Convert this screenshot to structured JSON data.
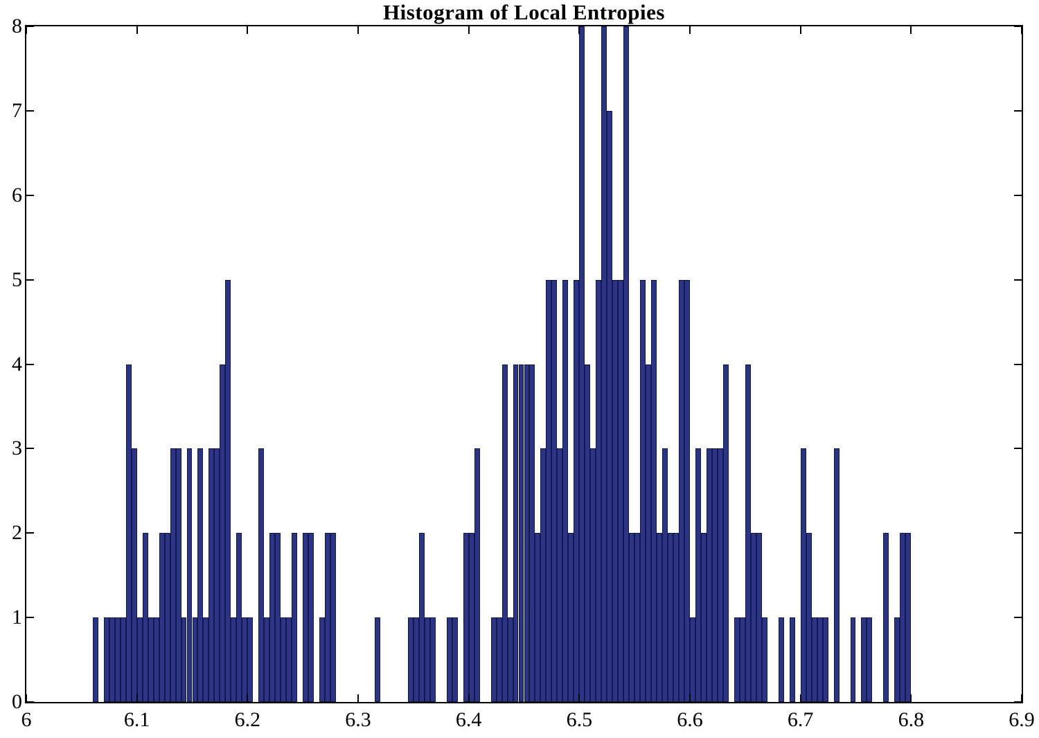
{
  "title": "Histogram of Local Entropies",
  "chart_data": {
    "type": "bar",
    "title": "Histogram of Local Entropies",
    "xlabel": "",
    "ylabel": "",
    "xlim": [
      6,
      6.9
    ],
    "ylim": [
      0,
      8
    ],
    "xtick_values": [
      6,
      6.1,
      6.2,
      6.3,
      6.4,
      6.5,
      6.6,
      6.7,
      6.8,
      6.9
    ],
    "xtick_labels": [
      "6",
      "6.1",
      "6.2",
      "6.3",
      "6.4",
      "6.5",
      "6.6",
      "6.7",
      "6.8",
      "6.9"
    ],
    "ytick_values": [
      0,
      1,
      2,
      3,
      4,
      5,
      6,
      7,
      8
    ],
    "ytick_labels": [
      "0",
      "1",
      "2",
      "3",
      "4",
      "5",
      "6",
      "7",
      "8"
    ],
    "grid": false,
    "legend": null,
    "bin_width": 0.005,
    "bar_color": "#2B3488",
    "bar_edge_color": "#14183F",
    "bins": [
      [
        6.06,
        1
      ],
      [
        6.07,
        1
      ],
      [
        6.075,
        1
      ],
      [
        6.08,
        1
      ],
      [
        6.085,
        1
      ],
      [
        6.09,
        4
      ],
      [
        6.095,
        3
      ],
      [
        6.1,
        1
      ],
      [
        6.105,
        2
      ],
      [
        6.11,
        1
      ],
      [
        6.115,
        1
      ],
      [
        6.12,
        2
      ],
      [
        6.125,
        2
      ],
      [
        6.13,
        3
      ],
      [
        6.135,
        3
      ],
      [
        6.14,
        1
      ],
      [
        6.145,
        3
      ],
      [
        6.15,
        1
      ],
      [
        6.155,
        3
      ],
      [
        6.16,
        1
      ],
      [
        6.165,
        3
      ],
      [
        6.17,
        3
      ],
      [
        6.175,
        4
      ],
      [
        6.18,
        5
      ],
      [
        6.185,
        1
      ],
      [
        6.19,
        2
      ],
      [
        6.195,
        1
      ],
      [
        6.2,
        1
      ],
      [
        6.21,
        3
      ],
      [
        6.215,
        1
      ],
      [
        6.22,
        2
      ],
      [
        6.225,
        2
      ],
      [
        6.23,
        1
      ],
      [
        6.235,
        1
      ],
      [
        6.24,
        2
      ],
      [
        6.25,
        2
      ],
      [
        6.255,
        2
      ],
      [
        6.265,
        1
      ],
      [
        6.27,
        2
      ],
      [
        6.275,
        2
      ],
      [
        6.315,
        1
      ],
      [
        6.345,
        1
      ],
      [
        6.35,
        1
      ],
      [
        6.355,
        2
      ],
      [
        6.36,
        1
      ],
      [
        6.365,
        1
      ],
      [
        6.38,
        1
      ],
      [
        6.385,
        1
      ],
      [
        6.395,
        2
      ],
      [
        6.4,
        2
      ],
      [
        6.405,
        3
      ],
      [
        6.42,
        1
      ],
      [
        6.425,
        1
      ],
      [
        6.43,
        4
      ],
      [
        6.435,
        1
      ],
      [
        6.44,
        4
      ],
      [
        6.445,
        4
      ],
      [
        6.45,
        4
      ],
      [
        6.455,
        4
      ],
      [
        6.46,
        2
      ],
      [
        6.465,
        3
      ],
      [
        6.47,
        5
      ],
      [
        6.475,
        5
      ],
      [
        6.48,
        3
      ],
      [
        6.485,
        5
      ],
      [
        6.49,
        2
      ],
      [
        6.495,
        5
      ],
      [
        6.5,
        8
      ],
      [
        6.505,
        4
      ],
      [
        6.51,
        3
      ],
      [
        6.515,
        5
      ],
      [
        6.52,
        8
      ],
      [
        6.525,
        7
      ],
      [
        6.53,
        5
      ],
      [
        6.535,
        5
      ],
      [
        6.54,
        8
      ],
      [
        6.545,
        2
      ],
      [
        6.55,
        2
      ],
      [
        6.555,
        5
      ],
      [
        6.56,
        4
      ],
      [
        6.565,
        5
      ],
      [
        6.57,
        2
      ],
      [
        6.575,
        3
      ],
      [
        6.58,
        2
      ],
      [
        6.585,
        2
      ],
      [
        6.59,
        5
      ],
      [
        6.595,
        5
      ],
      [
        6.6,
        1
      ],
      [
        6.605,
        3
      ],
      [
        6.61,
        2
      ],
      [
        6.615,
        3
      ],
      [
        6.62,
        3
      ],
      [
        6.625,
        3
      ],
      [
        6.63,
        4
      ],
      [
        6.64,
        1
      ],
      [
        6.645,
        1
      ],
      [
        6.65,
        4
      ],
      [
        6.655,
        2
      ],
      [
        6.66,
        2
      ],
      [
        6.665,
        1
      ],
      [
        6.68,
        1
      ],
      [
        6.69,
        1
      ],
      [
        6.7,
        3
      ],
      [
        6.705,
        2
      ],
      [
        6.71,
        1
      ],
      [
        6.715,
        1
      ],
      [
        6.72,
        1
      ],
      [
        6.73,
        3
      ],
      [
        6.745,
        1
      ],
      [
        6.755,
        1
      ],
      [
        6.76,
        1
      ],
      [
        6.775,
        2
      ],
      [
        6.785,
        1
      ],
      [
        6.79,
        2
      ],
      [
        6.795,
        2
      ]
    ]
  }
}
